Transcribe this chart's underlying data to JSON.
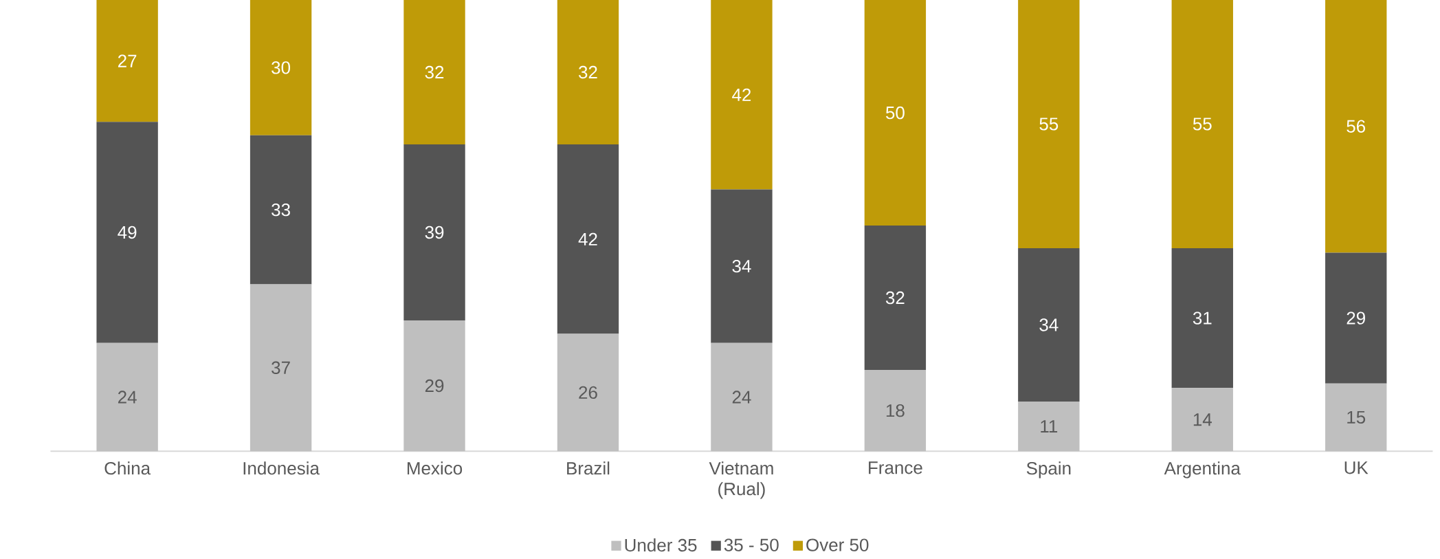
{
  "chart_data": {
    "type": "bar",
    "stacked": true,
    "categories": [
      "China",
      "Indonesia",
      "Mexico",
      "Brazil",
      "Vietnam (Rual)",
      "France",
      "Spain",
      "Argentina",
      "UK"
    ],
    "series": [
      {
        "name": "Under 35",
        "color": "#bfbfbf",
        "values": [
          24,
          37,
          29,
          26,
          24,
          18,
          11,
          14,
          15
        ]
      },
      {
        "name": "35 - 50",
        "color": "#545454",
        "values": [
          49,
          33,
          39,
          42,
          34,
          32,
          34,
          31,
          29
        ]
      },
      {
        "name": "Over 50",
        "color": "#bf9b08",
        "values": [
          27,
          30,
          32,
          32,
          42,
          50,
          55,
          55,
          56
        ]
      }
    ],
    "tick_labels": "x",
    "data_labels": true,
    "legend": "bottom",
    "grid": false
  }
}
